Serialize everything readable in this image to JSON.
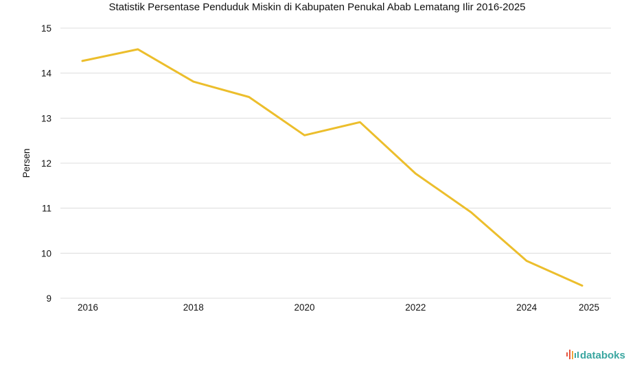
{
  "chart_data": {
    "type": "line",
    "title": "Statistik Persentase Penduduk Miskin di Kabupaten Penukal Abab Lematang Ilir 2016-2025",
    "xlabel": "",
    "ylabel": "Persen",
    "ylim": [
      9,
      15
    ],
    "yticks": [
      9,
      10,
      11,
      12,
      13,
      14,
      15
    ],
    "xticks": [
      "2016",
      "2018",
      "2020",
      "2022",
      "2024",
      "2025"
    ],
    "x": [
      2016,
      2017,
      2018,
      2019,
      2020,
      2021,
      2022,
      2023,
      2024,
      2025
    ],
    "series": [
      {
        "name": "Persentase Penduduk Miskin",
        "color": "#ecbe2c",
        "values": [
          14.27,
          14.53,
          13.81,
          13.47,
          12.62,
          12.91,
          11.77,
          10.91,
          9.83,
          9.28
        ]
      }
    ],
    "grid": true,
    "legend": "none"
  },
  "branding": {
    "logo_text": "databoks",
    "logo_color": "#3aa6a0",
    "logo_icon": "databoks-bars-icon"
  }
}
